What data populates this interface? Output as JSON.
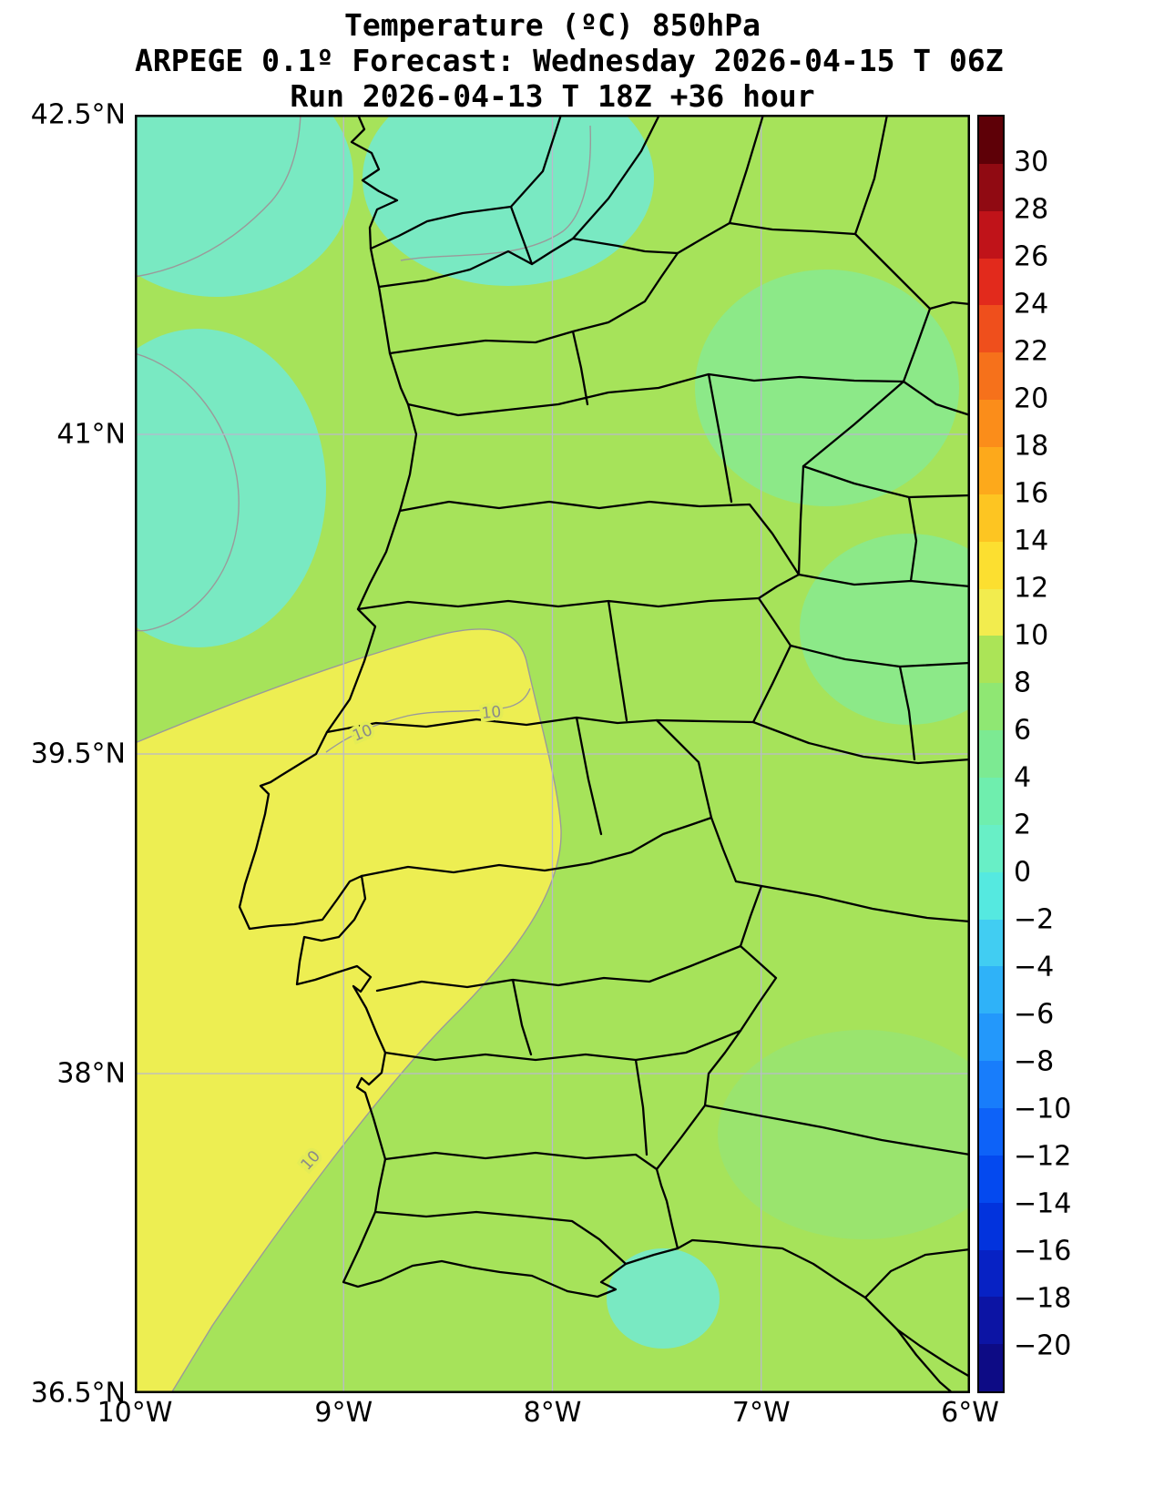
{
  "figure": {
    "title": "Temperature (ºC) 850hPa",
    "subtitle": "ARPEGE 0.1º Forecast: Wednesday 2026-04-15 T 06Z",
    "run_line": "Run 2026-04-13 T 18Z +36 hour"
  },
  "chart_data": {
    "type": "heatmap",
    "variant": "filled_contour_weather_map",
    "title": "Temperature (ºC) 850hPa",
    "model": "ARPEGE 0.1º",
    "valid_time": "Wednesday 2026-04-15 T 06Z",
    "run_time": "2026-04-13 T 18Z",
    "lead": "+36 hour",
    "region": "Portugal and western Spain",
    "grid": true,
    "x_axis": {
      "name": "longitude",
      "tick_labels": [
        "10°W",
        "9°W",
        "8°W",
        "7°W",
        "6°W"
      ],
      "tick_values": [
        -10,
        -9,
        -8,
        -7,
        -6
      ],
      "range": [
        -10,
        -6
      ]
    },
    "y_axis": {
      "name": "latitude",
      "tick_labels": [
        "42.5°N",
        "41°N",
        "39.5°N",
        "38°N",
        "36.5°N"
      ],
      "tick_values": [
        42.5,
        41,
        39.5,
        38,
        36.5
      ],
      "range": [
        36.5,
        42.5
      ]
    },
    "colorbar": {
      "unit": "°C",
      "position": "right",
      "tick_labels": [
        "30",
        "28",
        "26",
        "24",
        "22",
        "20",
        "18",
        "16",
        "14",
        "12",
        "10",
        "8",
        "6",
        "4",
        "2",
        "0",
        "−2",
        "−4",
        "−6",
        "−8",
        "−10",
        "−12",
        "−14",
        "−16",
        "−18",
        "−20"
      ],
      "tick_values": [
        30,
        28,
        26,
        24,
        22,
        20,
        18,
        16,
        14,
        12,
        10,
        8,
        6,
        4,
        2,
        0,
        -2,
        -4,
        -6,
        -8,
        -10,
        -12,
        -14,
        -16,
        -18,
        -20
      ],
      "band_colors_top_to_bottom": [
        "#5e0007",
        "#900a12",
        "#c01319",
        "#e22a1c",
        "#ef4f1c",
        "#f6711b",
        "#fb8d1a",
        "#fda91b",
        "#fdc522",
        "#fcdf30",
        "#f2ec4e",
        "#abe457",
        "#8fe773",
        "#7cea92",
        "#6feeae",
        "#68efc6",
        "#55e9e0",
        "#41cdf2",
        "#2fb2f8",
        "#2398fb",
        "#187dfb",
        "#0d62f8",
        "#0449ef",
        "#0233dd",
        "#0722c4",
        "#0c14a4",
        "#0d0b85"
      ]
    },
    "contour_labels": [
      "10",
      "10",
      "10"
    ],
    "field_summary": [
      {
        "region": "most of Portugal and western Spain",
        "temp_c": "8 to 10"
      },
      {
        "region": "southwest Atlantic, Lisbon area and lower Tejo valley",
        "temp_c": "10 to 12"
      },
      {
        "region": "northern Minho / Galicia patches and mid-west coast",
        "temp_c": "4 to 8"
      },
      {
        "region": "scattered eastern and southern patches",
        "temp_c": "6 to 8"
      }
    ],
    "map_colors": {
      "base": "#a6e35a",
      "warm_region": "#edee52",
      "cool_patch_teal": "#79e9c2",
      "cool_patch_green": "#8ce988",
      "cool_patch_light": "#9ae46e",
      "boundary": "#000000",
      "contour_line": "#9a9a9a",
      "grid_line": "#b9b9cc"
    }
  }
}
